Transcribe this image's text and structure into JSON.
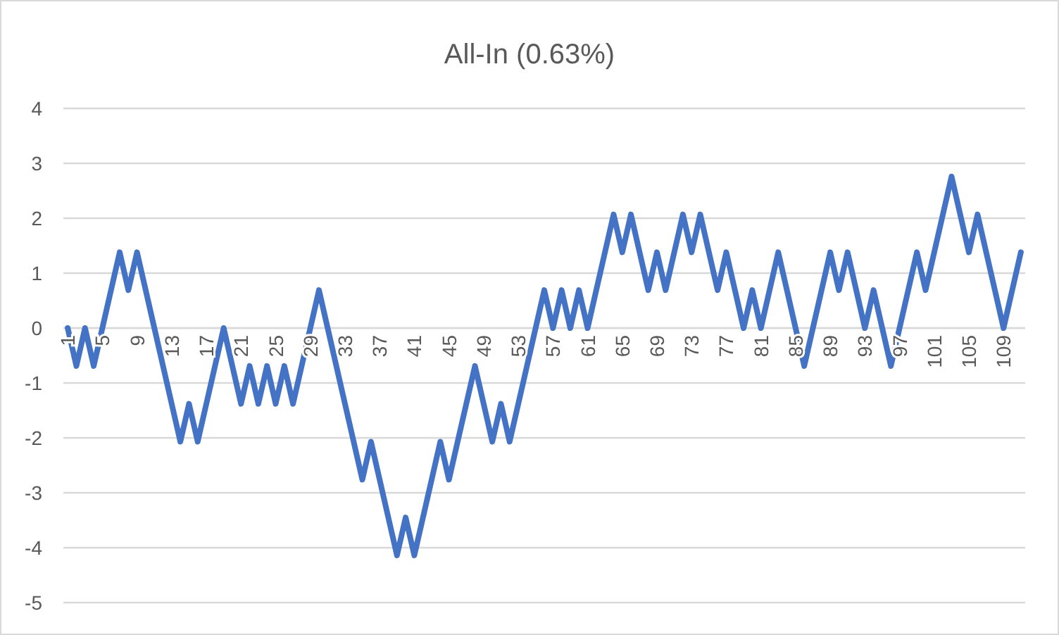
{
  "chart_data": {
    "type": "line",
    "title": "All-In (0.63%)",
    "categories": [
      "1",
      null,
      null,
      null,
      "5",
      null,
      null,
      null,
      "9",
      null,
      null,
      null,
      "13",
      null,
      null,
      null,
      "17",
      null,
      null,
      null,
      "21",
      null,
      null,
      null,
      "25",
      null,
      null,
      null,
      "29",
      null,
      null,
      null,
      "33",
      null,
      null,
      null,
      "37",
      null,
      null,
      null,
      "41",
      null,
      null,
      null,
      "45",
      null,
      null,
      null,
      "49",
      null,
      null,
      null,
      "53",
      null,
      null,
      null,
      "57",
      null,
      null,
      null,
      "61",
      null,
      null,
      null,
      "65",
      null,
      null,
      null,
      "69",
      null,
      null,
      null,
      "73",
      null,
      null,
      null,
      "77",
      null,
      null,
      null,
      "81",
      null,
      null,
      null,
      "85",
      null,
      null,
      null,
      "89",
      null,
      null,
      null,
      "93",
      null,
      null,
      null,
      "97",
      null,
      null,
      null,
      "101",
      null,
      null,
      null,
      "105",
      null,
      null,
      null,
      "109",
      null,
      null
    ],
    "series": [
      {
        "color": "#4472c4",
        "values": [
          0,
          -0.69,
          0,
          -0.69,
          0,
          0.69,
          1.38,
          0.69,
          1.38,
          0.69,
          0,
          -0.69,
          -1.38,
          -2.07,
          -1.38,
          -2.07,
          -1.38,
          -0.69,
          0,
          -0.69,
          -1.38,
          -0.69,
          -1.38,
          -0.69,
          -1.38,
          -0.69,
          -1.38,
          -0.69,
          0,
          0.69,
          0,
          -0.69,
          -1.38,
          -2.07,
          -2.76,
          -2.07,
          -2.76,
          -3.45,
          -4.14,
          -3.45,
          -4.14,
          -3.45,
          -2.76,
          -2.07,
          -2.76,
          -2.07,
          -1.38,
          -0.69,
          -1.38,
          -2.07,
          -1.38,
          -2.07,
          -1.38,
          -0.69,
          0,
          0.69,
          0,
          0.69,
          0,
          0.69,
          0,
          0.69,
          1.38,
          2.07,
          1.38,
          2.07,
          1.38,
          0.69,
          1.38,
          0.69,
          1.38,
          2.07,
          1.38,
          2.07,
          1.38,
          0.69,
          1.38,
          0.69,
          0,
          0.69,
          0,
          0.69,
          1.38,
          0.69,
          0,
          -0.69,
          0,
          0.69,
          1.38,
          0.69,
          1.38,
          0.69,
          0,
          0.69,
          0,
          -0.69,
          0,
          0.69,
          1.38,
          0.69,
          1.38,
          2.07,
          2.76,
          2.07,
          1.38,
          2.07,
          1.38,
          0.69,
          0,
          0.69,
          1.38
        ]
      }
    ],
    "ylim": [
      -5,
      4
    ],
    "yticks": [
      -5,
      -4,
      -3,
      -2,
      -1,
      0,
      1,
      2,
      3,
      4
    ],
    "grid": "y",
    "marker": "none",
    "line_style": "solid"
  }
}
